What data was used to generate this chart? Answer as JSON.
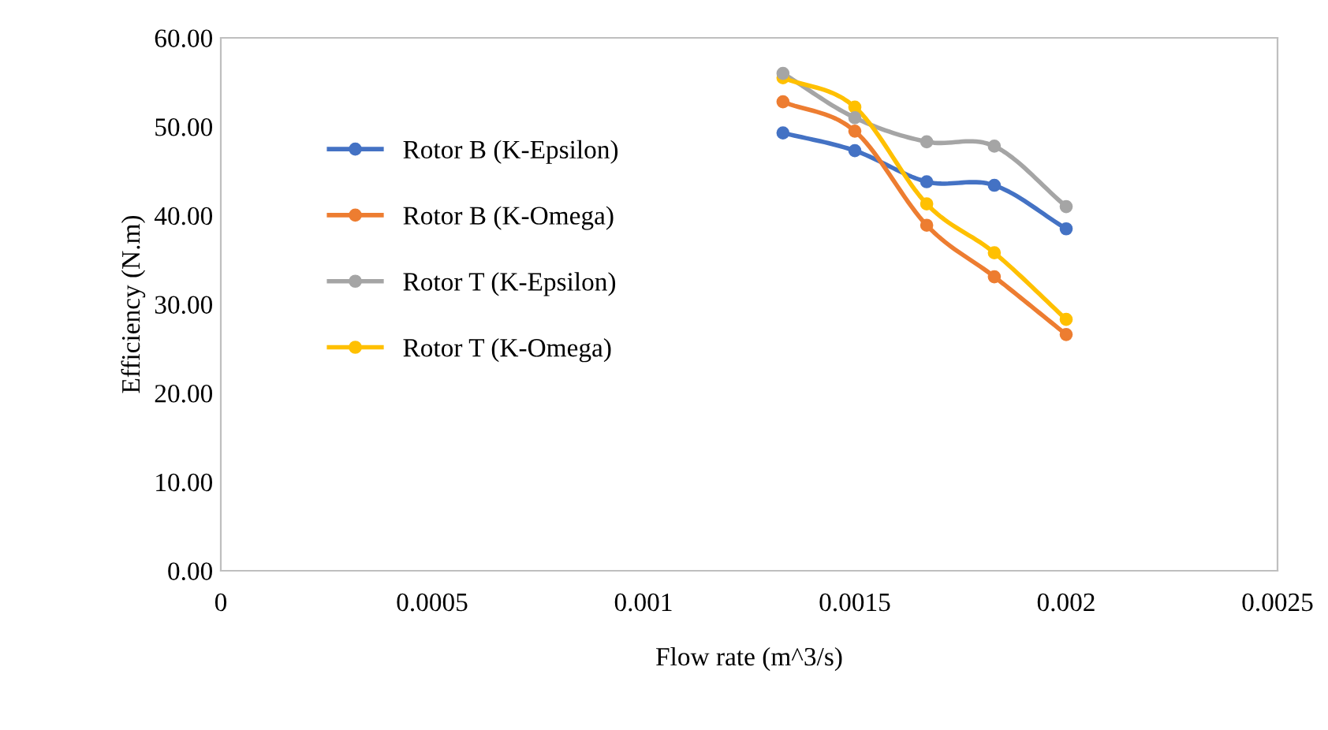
{
  "chart_data": {
    "type": "line",
    "xlabel": "Flow rate (m^3/s)",
    "ylabel": "Efficiency (N.m)",
    "x": [
      0.00133,
      0.0015,
      0.00167,
      0.00183,
      0.002
    ],
    "series": [
      {
        "name": "Rotor B (K-Epsilon)",
        "color": "#4472c4",
        "values": [
          49.3,
          47.3,
          43.8,
          43.4,
          38.5
        ]
      },
      {
        "name": "Rotor B (K-Omega)",
        "color": "#ed7d31",
        "values": [
          52.8,
          49.5,
          38.9,
          33.1,
          26.6
        ]
      },
      {
        "name": "Rotor T (K-Epsilon)",
        "color": "#a5a5a5",
        "values": [
          56.0,
          51.0,
          48.3,
          47.8,
          41.0
        ]
      },
      {
        "name": "Rotor T (K-Omega)",
        "color": "#ffc000",
        "values": [
          55.5,
          52.2,
          41.3,
          35.8,
          28.3
        ]
      }
    ],
    "xlim": [
      0,
      0.0025
    ],
    "xticks": [
      0,
      0.0005,
      0.001,
      0.0015,
      0.002,
      0.0025
    ],
    "ylim": [
      0,
      60
    ],
    "yticks": [
      {
        "value": 0,
        "label": "0.00"
      },
      {
        "value": 10,
        "label": "10.00"
      },
      {
        "value": 20,
        "label": "20.00"
      },
      {
        "value": 30,
        "label": "30.00"
      },
      {
        "value": 40,
        "label": "40.00"
      },
      {
        "value": 50,
        "label": "50.00"
      },
      {
        "value": 60,
        "label": "60.00"
      }
    ],
    "grid": false,
    "legend": "left",
    "marker": "circle",
    "line_style": "solid"
  }
}
